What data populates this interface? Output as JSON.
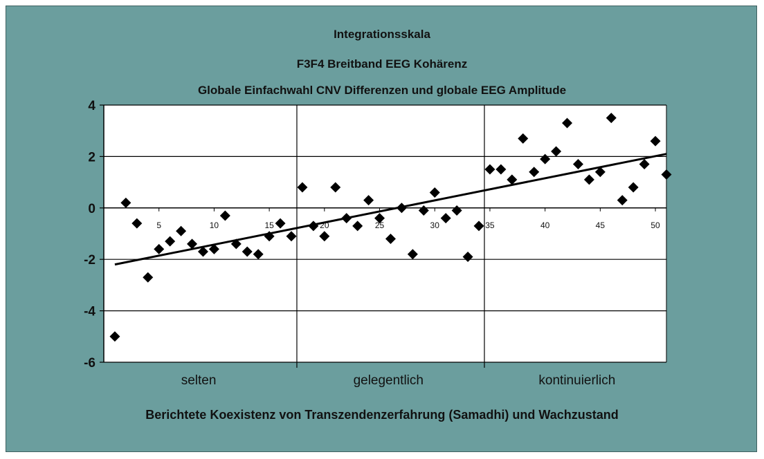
{
  "chart_data": {
    "type": "scatter",
    "title_lines": [
      "Integrationsskala",
      "F3F4 Breitband EEG Kohärenz",
      "Globale Einfachwahl CNV Differenzen und globale EEG Amplitude"
    ],
    "xlabel": "Berichtete Koexistenz von Transzendenzerfahrung (Samadhi) und Wachzustand",
    "ylabel": "",
    "xlim": [
      0,
      51
    ],
    "ylim": [
      -6,
      4
    ],
    "x_ticks": [
      5,
      10,
      15,
      20,
      25,
      30,
      35,
      40,
      45,
      50
    ],
    "x_tick_labels": [
      "5",
      "10",
      "15",
      "20",
      "25",
      "30",
      "35",
      "40",
      "45",
      "50"
    ],
    "y_ticks": [
      -6,
      -4,
      -2,
      0,
      2,
      4
    ],
    "y_tick_labels": [
      "-6",
      "-4",
      "-2",
      "0",
      "2",
      "4"
    ],
    "grid": true,
    "group_dividers": [
      17.5,
      34.5
    ],
    "group_labels": [
      "selten",
      "gelegentlich",
      "kontinuierlich"
    ],
    "group_centers": [
      8.6,
      25.8,
      42.9
    ],
    "points": [
      {
        "x": 1,
        "y": -5.0
      },
      {
        "x": 2,
        "y": 0.2
      },
      {
        "x": 3,
        "y": -0.6
      },
      {
        "x": 4,
        "y": -2.7
      },
      {
        "x": 5,
        "y": -1.6
      },
      {
        "x": 6,
        "y": -1.3
      },
      {
        "x": 7,
        "y": -0.9
      },
      {
        "x": 8,
        "y": -1.4
      },
      {
        "x": 9,
        "y": -1.7
      },
      {
        "x": 10,
        "y": -1.6
      },
      {
        "x": 11,
        "y": -0.3
      },
      {
        "x": 12,
        "y": -1.4
      },
      {
        "x": 13,
        "y": -1.7
      },
      {
        "x": 14,
        "y": -1.8
      },
      {
        "x": 15,
        "y": -1.1
      },
      {
        "x": 16,
        "y": -0.6
      },
      {
        "x": 17,
        "y": -1.1
      },
      {
        "x": 18,
        "y": 0.8
      },
      {
        "x": 19,
        "y": -0.7
      },
      {
        "x": 20,
        "y": -1.1
      },
      {
        "x": 21,
        "y": 0.8
      },
      {
        "x": 22,
        "y": -0.4
      },
      {
        "x": 23,
        "y": -0.7
      },
      {
        "x": 24,
        "y": 0.3
      },
      {
        "x": 25,
        "y": -0.4
      },
      {
        "x": 26,
        "y": -1.2
      },
      {
        "x": 27,
        "y": 0.0
      },
      {
        "x": 28,
        "y": -1.8
      },
      {
        "x": 29,
        "y": -0.1
      },
      {
        "x": 30,
        "y": 0.6
      },
      {
        "x": 31,
        "y": -0.4
      },
      {
        "x": 32,
        "y": -0.1
      },
      {
        "x": 33,
        "y": -1.9
      },
      {
        "x": 34,
        "y": -0.7
      },
      {
        "x": 35,
        "y": 1.5
      },
      {
        "x": 36,
        "y": 1.5
      },
      {
        "x": 37,
        "y": 1.1
      },
      {
        "x": 38,
        "y": 2.7
      },
      {
        "x": 39,
        "y": 1.4
      },
      {
        "x": 40,
        "y": 1.9
      },
      {
        "x": 41,
        "y": 2.2
      },
      {
        "x": 42,
        "y": 3.3
      },
      {
        "x": 43,
        "y": 1.7
      },
      {
        "x": 44,
        "y": 1.1
      },
      {
        "x": 45,
        "y": 1.4
      },
      {
        "x": 46,
        "y": 3.5
      },
      {
        "x": 47,
        "y": 0.3
      },
      {
        "x": 48,
        "y": 0.8
      },
      {
        "x": 49,
        "y": 1.7
      },
      {
        "x": 50,
        "y": 2.6
      },
      {
        "x": 51,
        "y": 1.3
      }
    ],
    "trendline": {
      "x": [
        1,
        51
      ],
      "y": [
        -2.2,
        2.1
      ]
    },
    "colors": {
      "background": "#6b9e9e",
      "plot_area": "#ffffff",
      "marker": "#000000",
      "trendline": "#000000"
    }
  }
}
